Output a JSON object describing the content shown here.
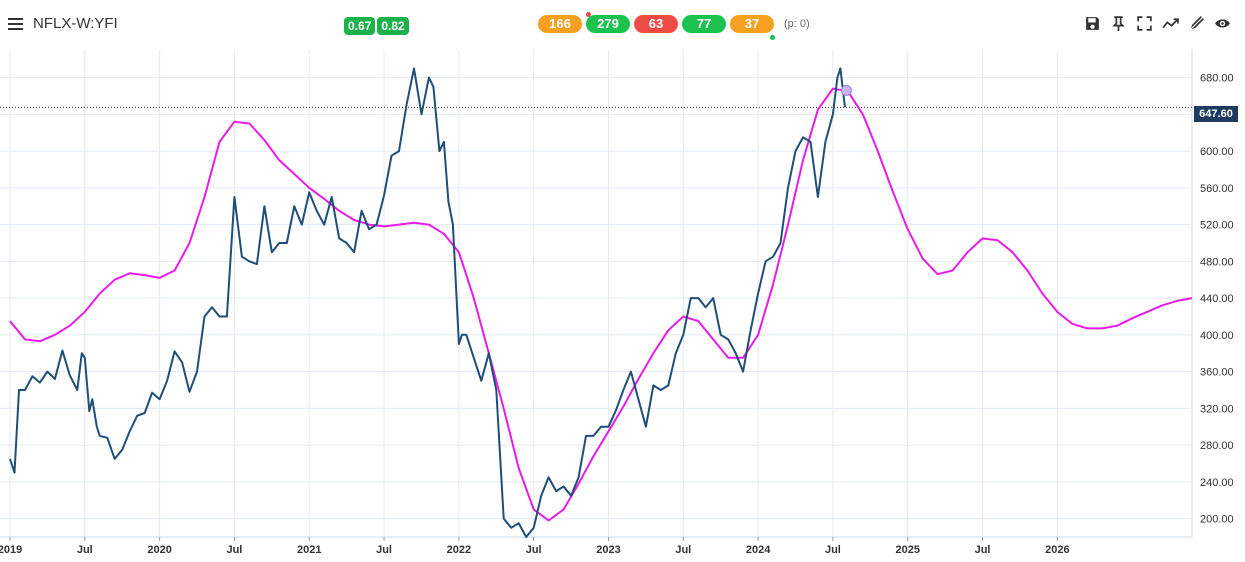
{
  "header": {
    "symbol": "NFLX-W:YFI",
    "badges": [
      "0.67",
      "0.82"
    ],
    "pills": [
      {
        "value": "166",
        "color": "#f5a021"
      },
      {
        "value": "279",
        "color": "#1bc24f"
      },
      {
        "value": "63",
        "color": "#ee4a46"
      },
      {
        "value": "77",
        "color": "#1bc24f"
      },
      {
        "value": "37",
        "color": "#f5a021"
      }
    ],
    "p_stat": "(p: 0)"
  },
  "toolbar": {
    "icons": [
      "save-icon",
      "pin-icon",
      "fullscreen-icon",
      "trend-icon",
      "draw-icon",
      "eye-icon"
    ]
  },
  "chart_data": {
    "type": "line",
    "title": "",
    "xlabel": "",
    "ylabel": "",
    "last_price_label": "647.60",
    "last_price": 647.6,
    "ylim": [
      180,
      710
    ],
    "yticks": [
      200,
      240,
      280,
      320,
      360,
      400,
      440,
      480,
      520,
      560,
      600,
      640,
      680
    ],
    "ytick_labels": [
      "200.00",
      "240.00",
      "280.00",
      "320.00",
      "360.00",
      "400.00",
      "440.00",
      "480.00",
      "520.00",
      "560.00",
      "600.00",
      "640.00",
      "680.00"
    ],
    "xlim": [
      2019.0,
      2026.9
    ],
    "xticks": [
      2019.0,
      2019.5,
      2020.0,
      2020.5,
      2021.0,
      2021.5,
      2022.0,
      2022.5,
      2023.0,
      2023.5,
      2024.0,
      2024.5,
      2025.0,
      2025.5,
      2026.0
    ],
    "xtick_labels": [
      "2019",
      "Jul",
      "2020",
      "Jul",
      "2021",
      "Jul",
      "2022",
      "Jul",
      "2023",
      "Jul",
      "2024",
      "Jul",
      "2025",
      "Jul",
      "2026"
    ],
    "grid": true,
    "series": [
      {
        "color": "#1f4e79",
        "x": [
          2019.0,
          2019.03,
          2019.06,
          2019.1,
          2019.15,
          2019.2,
          2019.25,
          2019.3,
          2019.35,
          2019.4,
          2019.45,
          2019.48,
          2019.5,
          2019.53,
          2019.55,
          2019.58,
          2019.6,
          2019.65,
          2019.7,
          2019.75,
          2019.8,
          2019.85,
          2019.9,
          2019.95,
          2020.0,
          2020.05,
          2020.1,
          2020.15,
          2020.2,
          2020.25,
          2020.3,
          2020.35,
          2020.4,
          2020.45,
          2020.5,
          2020.55,
          2020.6,
          2020.65,
          2020.7,
          2020.75,
          2020.8,
          2020.85,
          2020.9,
          2020.95,
          2021.0,
          2021.05,
          2021.1,
          2021.15,
          2021.2,
          2021.25,
          2021.3,
          2021.35,
          2021.4,
          2021.45,
          2021.5,
          2021.55,
          2021.6,
          2021.65,
          2021.7,
          2021.75,
          2021.8,
          2021.83,
          2021.87,
          2021.9,
          2021.93,
          2021.96,
          2022.0,
          2022.02,
          2022.05,
          2022.1,
          2022.15,
          2022.2,
          2022.25,
          2022.3,
          2022.35,
          2022.4,
          2022.45,
          2022.5,
          2022.55,
          2022.6,
          2022.65,
          2022.7,
          2022.75,
          2022.8,
          2022.85,
          2022.9,
          2022.95,
          2023.0,
          2023.05,
          2023.1,
          2023.15,
          2023.2,
          2023.25,
          2023.3,
          2023.35,
          2023.4,
          2023.45,
          2023.5,
          2023.55,
          2023.6,
          2023.65,
          2023.7,
          2023.75,
          2023.8,
          2023.85,
          2023.9,
          2023.95,
          2024.0,
          2024.05,
          2024.1,
          2024.15,
          2024.2,
          2024.25,
          2024.3,
          2024.35,
          2024.4,
          2024.45,
          2024.5,
          2024.53,
          2024.55,
          2024.58
        ],
        "y": [
          265,
          250,
          340,
          340,
          355,
          348,
          360,
          352,
          383,
          356,
          340,
          380,
          375,
          317,
          330,
          300,
          290,
          288,
          265,
          275,
          295,
          312,
          315,
          337,
          330,
          350,
          382,
          370,
          338,
          360,
          420,
          430,
          420,
          420,
          550,
          485,
          480,
          477,
          540,
          490,
          500,
          500,
          540,
          520,
          555,
          535,
          520,
          550,
          505,
          500,
          490,
          535,
          515,
          520,
          552,
          595,
          600,
          650,
          690,
          640,
          680,
          670,
          600,
          610,
          545,
          520,
          390,
          400,
          400,
          375,
          350,
          380,
          340,
          200,
          190,
          195,
          180,
          190,
          225,
          245,
          230,
          235,
          225,
          245,
          290,
          290,
          300,
          300,
          318,
          340,
          360,
          330,
          300,
          345,
          340,
          345,
          380,
          400,
          440,
          440,
          430,
          440,
          400,
          395,
          380,
          360,
          405,
          445,
          480,
          485,
          500,
          560,
          600,
          615,
          610,
          550,
          610,
          640,
          680,
          690,
          647.6
        ]
      },
      {
        "color": "#e81ce8",
        "x": [
          2019.0,
          2019.1,
          2019.2,
          2019.3,
          2019.4,
          2019.5,
          2019.6,
          2019.7,
          2019.8,
          2019.9,
          2020.0,
          2020.1,
          2020.2,
          2020.3,
          2020.4,
          2020.5,
          2020.6,
          2020.7,
          2020.8,
          2020.9,
          2021.0,
          2021.1,
          2021.2,
          2021.3,
          2021.4,
          2021.5,
          2021.6,
          2021.7,
          2021.8,
          2021.9,
          2022.0,
          2022.1,
          2022.2,
          2022.3,
          2022.4,
          2022.5,
          2022.6,
          2022.7,
          2022.8,
          2022.9,
          2023.0,
          2023.1,
          2023.2,
          2023.3,
          2023.4,
          2023.5,
          2023.6,
          2023.7,
          2023.8,
          2023.9,
          2024.0,
          2024.1,
          2024.2,
          2024.3,
          2024.4,
          2024.5,
          2024.6,
          2024.7,
          2024.8,
          2024.9,
          2025.0,
          2025.1,
          2025.2,
          2025.3,
          2025.4,
          2025.5,
          2025.6,
          2025.7,
          2025.8,
          2025.9,
          2026.0,
          2026.1,
          2026.2,
          2026.3,
          2026.4,
          2026.5,
          2026.6,
          2026.7,
          2026.8,
          2026.9
        ],
        "y": [
          415,
          395,
          393,
          400,
          410,
          425,
          445,
          460,
          467,
          465,
          462,
          470,
          500,
          550,
          610,
          632,
          630,
          612,
          590,
          575,
          560,
          548,
          535,
          525,
          520,
          518,
          520,
          522,
          520,
          510,
          490,
          440,
          380,
          320,
          255,
          210,
          198,
          210,
          238,
          268,
          295,
          322,
          352,
          380,
          405,
          420,
          415,
          395,
          375,
          375,
          400,
          455,
          520,
          590,
          645,
          668,
          665,
          640,
          600,
          556,
          515,
          483,
          466,
          470,
          490,
          505,
          503,
          490,
          470,
          445,
          425,
          412,
          407,
          407,
          410,
          418,
          425,
          432,
          437,
          440
        ]
      }
    ],
    "marker": {
      "x": 2024.59,
      "y": 666
    }
  }
}
